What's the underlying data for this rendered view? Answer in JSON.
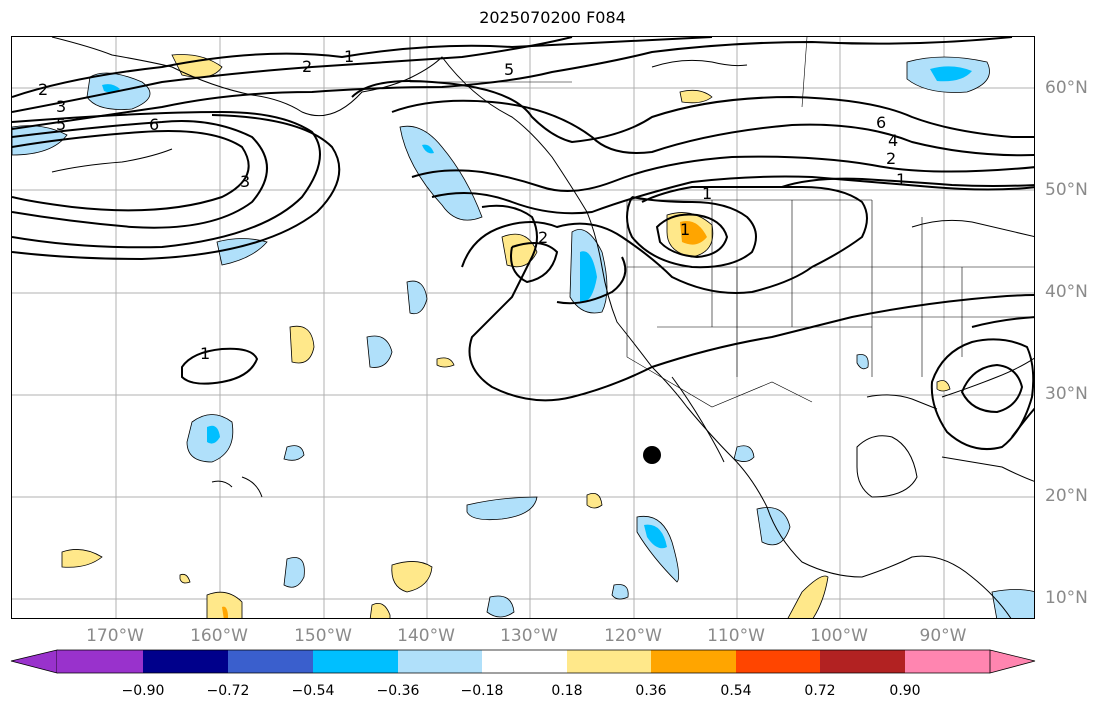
{
  "title": "2025070200 F084",
  "lon_labels": [
    "170°W",
    "160°W",
    "150°W",
    "140°W",
    "130°W",
    "120°W",
    "110°W",
    "100°W",
    "90°W"
  ],
  "lat_labels": [
    "60°N",
    "50°N",
    "40°N",
    "30°N",
    "20°N",
    "10°N"
  ],
  "contour_labels": [
    "1",
    "2",
    "5",
    "2",
    "3",
    "5",
    "6",
    "6",
    "4",
    "2",
    "1",
    "3",
    "2",
    "1",
    "1",
    "1"
  ],
  "colorbar": {
    "ticks": [
      "−0.90",
      "−0.72",
      "−0.54",
      "−0.36",
      "−0.18",
      "0.18",
      "0.36",
      "0.54",
      "0.72",
      "0.90"
    ],
    "colors": [
      "#9932cc",
      "#00008b",
      "#3a5fcd",
      "#00bfff",
      "#b0e0fa",
      "#ffffff",
      "#ffe88a",
      "#ffa500",
      "#ff4500",
      "#b22222",
      "#ff85b0"
    ]
  },
  "marker": "filled-circle"
}
